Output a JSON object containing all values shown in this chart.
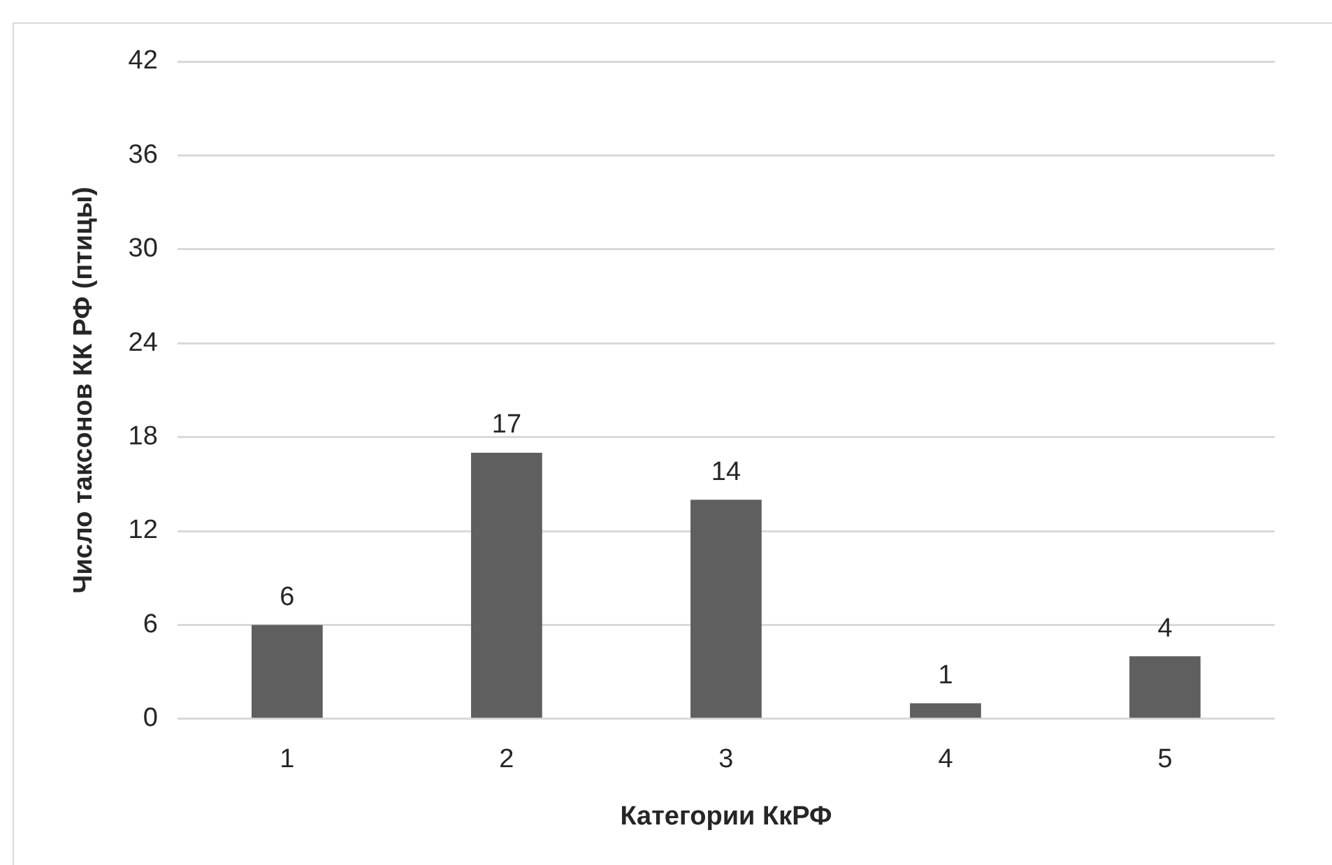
{
  "chart_data": {
    "type": "bar",
    "xlabel": "Категории КкРФ",
    "ylabel": "Число таксонов КК РФ (птицы)",
    "categories": [
      "1",
      "2",
      "3",
      "4",
      "5"
    ],
    "values": [
      6,
      17,
      14,
      1,
      4
    ],
    "color": "#5f5f5f",
    "ylim": [
      0,
      42
    ],
    "yticks": [
      0,
      6,
      12,
      18,
      24,
      30,
      36,
      42
    ],
    "grid": "y",
    "data_labels": true
  }
}
